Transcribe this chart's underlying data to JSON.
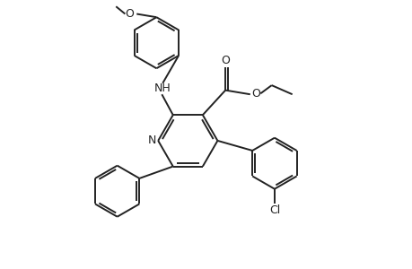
{
  "background_color": "#ffffff",
  "line_color": "#222222",
  "line_width": 1.4,
  "figsize": [
    4.6,
    3.0
  ],
  "dpi": 100,
  "xlim": [
    0,
    10
  ],
  "ylim": [
    0,
    6.5
  ]
}
